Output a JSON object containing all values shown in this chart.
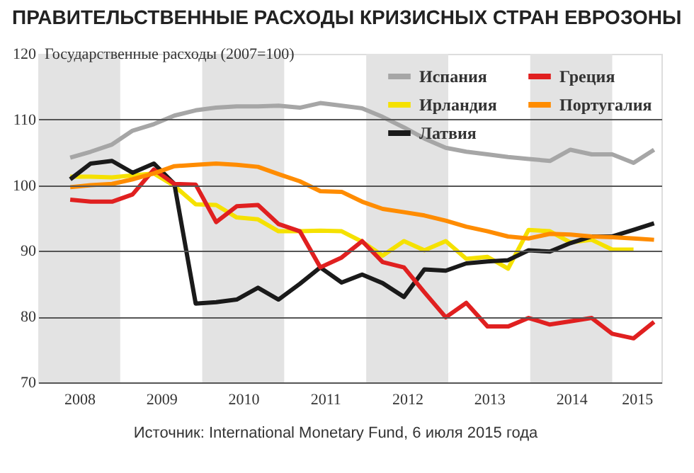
{
  "chart_data": {
    "type": "line",
    "title": "ПРАВИТЕЛЬСТВЕННЫЕ РАСХОДЫ КРИЗИСНЫХ СТРАН ЕВРОЗОНЫ",
    "ylabel": "Государственные расходы (2007=100)",
    "x": [
      2008.39,
      2008.64,
      2008.9,
      2009.15,
      2009.41,
      2009.66,
      2009.92,
      2010.17,
      2010.42,
      2010.68,
      2010.93,
      2011.19,
      2011.44,
      2011.7,
      2011.95,
      2012.2,
      2012.46,
      2012.71,
      2012.97,
      2013.22,
      2013.48,
      2013.73,
      2013.98,
      2014.24,
      2014.49,
      2014.75,
      2015.0,
      2015.26,
      2015.51
    ],
    "series": [
      {
        "name": "Испания",
        "color": "#a6a6a6",
        "values": [
          104.2,
          105.1,
          106.2,
          108.3,
          109.3,
          110.6,
          111.4,
          111.8,
          112,
          112,
          112.1,
          111.8,
          112.5,
          112.1,
          111.7,
          110.4,
          108.8,
          107.1,
          105.7,
          105.1,
          104.7,
          104.3,
          104,
          103.7,
          105.4,
          104.7,
          104.7,
          103.4,
          105.4
        ]
      },
      {
        "name": "Ирландия",
        "color": "#f5e100",
        "values": [
          101.3,
          101.3,
          101.2,
          101.5,
          101.8,
          99.9,
          97.1,
          97,
          95.1,
          94.8,
          93,
          93,
          93.1,
          93,
          91.4,
          89.3,
          91.5,
          90.1,
          91.5,
          88.8,
          89.1,
          87.3,
          93.2,
          93,
          91.3,
          91.7,
          90.2,
          90.2,
          null
        ]
      },
      {
        "name": "Латвия",
        "color": "#1a1a1a",
        "values": [
          100.9,
          103.3,
          103.7,
          101.9,
          103.3,
          100.2,
          82,
          82.2,
          82.6,
          84.4,
          82.6,
          85,
          87.5,
          85.2,
          86.4,
          85.1,
          83,
          87.2,
          87,
          88.1,
          88.4,
          88.6,
          90.1,
          89.9,
          91.2,
          92.2,
          92.2,
          93.2,
          94.2
        ]
      },
      {
        "name": "Греция",
        "color": "#e02020",
        "values": [
          97.8,
          97.5,
          97.5,
          98.6,
          102.4,
          100.2,
          100.1,
          94.4,
          96.8,
          97,
          94.1,
          93,
          87.5,
          89,
          91.5,
          88.3,
          87.5,
          83.7,
          79.9,
          82.1,
          78.5,
          78.5,
          79.8,
          78.8,
          79.3,
          79.8,
          77.4,
          76.7,
          79.2
        ]
      },
      {
        "name": "Португалия",
        "color": "#ff8c00",
        "values": [
          99.7,
          100,
          100.2,
          100.9,
          101.8,
          102.9,
          103.1,
          103.3,
          103.1,
          102.8,
          101.7,
          100.6,
          99.1,
          99,
          97.5,
          96.4,
          95.9,
          95.4,
          94.6,
          93.7,
          93,
          92.2,
          91.9,
          92.6,
          92.5,
          92.2,
          92.1,
          91.9,
          91.7
        ]
      }
    ],
    "xlim": [
      2008,
      2015.6
    ],
    "xticks": [
      {
        "value": 2008.5,
        "label": "2008"
      },
      {
        "value": 2009.5,
        "label": "2009"
      },
      {
        "value": 2010.5,
        "label": "2010"
      },
      {
        "value": 2011.5,
        "label": "2011"
      },
      {
        "value": 2012.5,
        "label": "2012"
      },
      {
        "value": 2013.5,
        "label": "2013"
      },
      {
        "value": 2014.5,
        "label": "2014"
      },
      {
        "value": 2015.3,
        "label": "2015"
      }
    ],
    "ylim": [
      70,
      120
    ],
    "yticks": [
      70,
      80,
      90,
      100,
      110,
      120
    ],
    "bands": [
      {
        "axis": "x",
        "from": 2008,
        "to": 2009,
        "color": "#e3e3e3"
      },
      {
        "axis": "x",
        "from": 2010,
        "to": 2011,
        "color": "#e3e3e3"
      },
      {
        "axis": "x",
        "from": 2012,
        "to": 2013,
        "color": "#e3e3e3"
      },
      {
        "axis": "x",
        "from": 2014,
        "to": 2015,
        "color": "#e3e3e3"
      }
    ],
    "grid": "y",
    "legend": "top right",
    "line_style": "solid",
    "marker": "none",
    "annotations": [
      "Источник: International Monetary Fund, 6 июля 2015 года"
    ]
  }
}
